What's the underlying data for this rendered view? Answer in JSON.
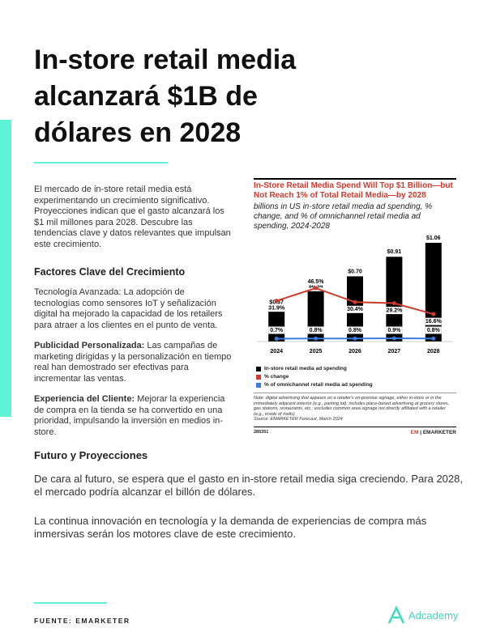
{
  "header": {
    "title": "In-store retail media alcanzará $1B de dólares en 2028"
  },
  "intro": "El mercado de in-store retail media está experimentando un crecimiento significativo. Proyecciones indican que el gasto alcanzará los $1 mil millones para 2028. Descubre las tendencias clave y datos relevantes que impulsan este crecimiento.",
  "factors": {
    "heading": "Factores Clave del Crecimiento",
    "items": [
      {
        "lead": "",
        "text": "Tecnología Avanzada: La adopción de tecnologías como sensores IoT y señalización digital ha mejorado la capacidad de los retailers para atraer a los clientes en el punto de venta."
      },
      {
        "lead": "Publicidad Personalizada:",
        "text": "Las campañas de marketing dirigidas y la personalización en tiempo real han demostrado ser efectivas para incrementar las ventas."
      },
      {
        "lead": "Experiencia del Cliente:",
        "text": "Mejorar la experiencia de compra en la tienda se ha convertido en una prioridad, impulsando la inversión en medios in-store."
      }
    ]
  },
  "future": {
    "heading": "Futuro y Proyecciones",
    "paragraphs": [
      "De cara al futuro, se espera que el gasto en in-store retail media siga creciendo. Para 2028, el mercado podría alcanzar el billón de dólares.",
      "La continua innovación en tecnología y la demanda de experiencias de compra más inmersivas serán los motores clave de este crecimiento."
    ]
  },
  "footer": {
    "source": "FUENTE: EMARKETER",
    "brand": "Adcademy"
  },
  "chart_data": {
    "type": "bar",
    "title": "In-Store Retail Media Spend Will Top $1 Billion—but Not Reach 1% of Total Retail Media—by 2028",
    "subtitle": "billions in US in-store retail media ad spending, % change, and % of omnichannel retail media ad spending, 2024-2028",
    "categories": [
      "2024",
      "2025",
      "2026",
      "2027",
      "2028"
    ],
    "series": [
      {
        "name": "In-store retail media ad spending",
        "color": "#000000",
        "type": "bar",
        "values": [
          0.37,
          0.54,
          0.7,
          0.91,
          1.06
        ],
        "value_labels": [
          "$0.37",
          "$0.54",
          "$0.70",
          "$0.91",
          "$1.06"
        ]
      },
      {
        "name": "% change",
        "color": "#d03b2f",
        "type": "line",
        "values": [
          31.9,
          46.5,
          30.4,
          29.2,
          16.6
        ],
        "value_labels": [
          "31.9%",
          "46.5%",
          "30.4%",
          "29.2%",
          "16.6%"
        ]
      },
      {
        "name": "% of omnichannel retail media ad spending",
        "color": "#3d7be0",
        "type": "line",
        "values": [
          0.7,
          0.8,
          0.8,
          0.9,
          0.8
        ],
        "value_labels": [
          "0.7%",
          "0.8%",
          "0.8%",
          "0.9%",
          "0.8%"
        ]
      }
    ],
    "note": "Note: digital advertising that appears on a retailer's on-premise signage, either in-store or in the immediately adjacent exterior (e.g., parking lot); includes place-based advertising at grocery stores, gas stations, restaurants, etc.; excludes common area signage not directly affiliated with a retailer (e.g., inside of malls)",
    "source": "Source: EMARKETER Forecast, March 2024",
    "id": "285351",
    "brand": "EMARKETER"
  }
}
